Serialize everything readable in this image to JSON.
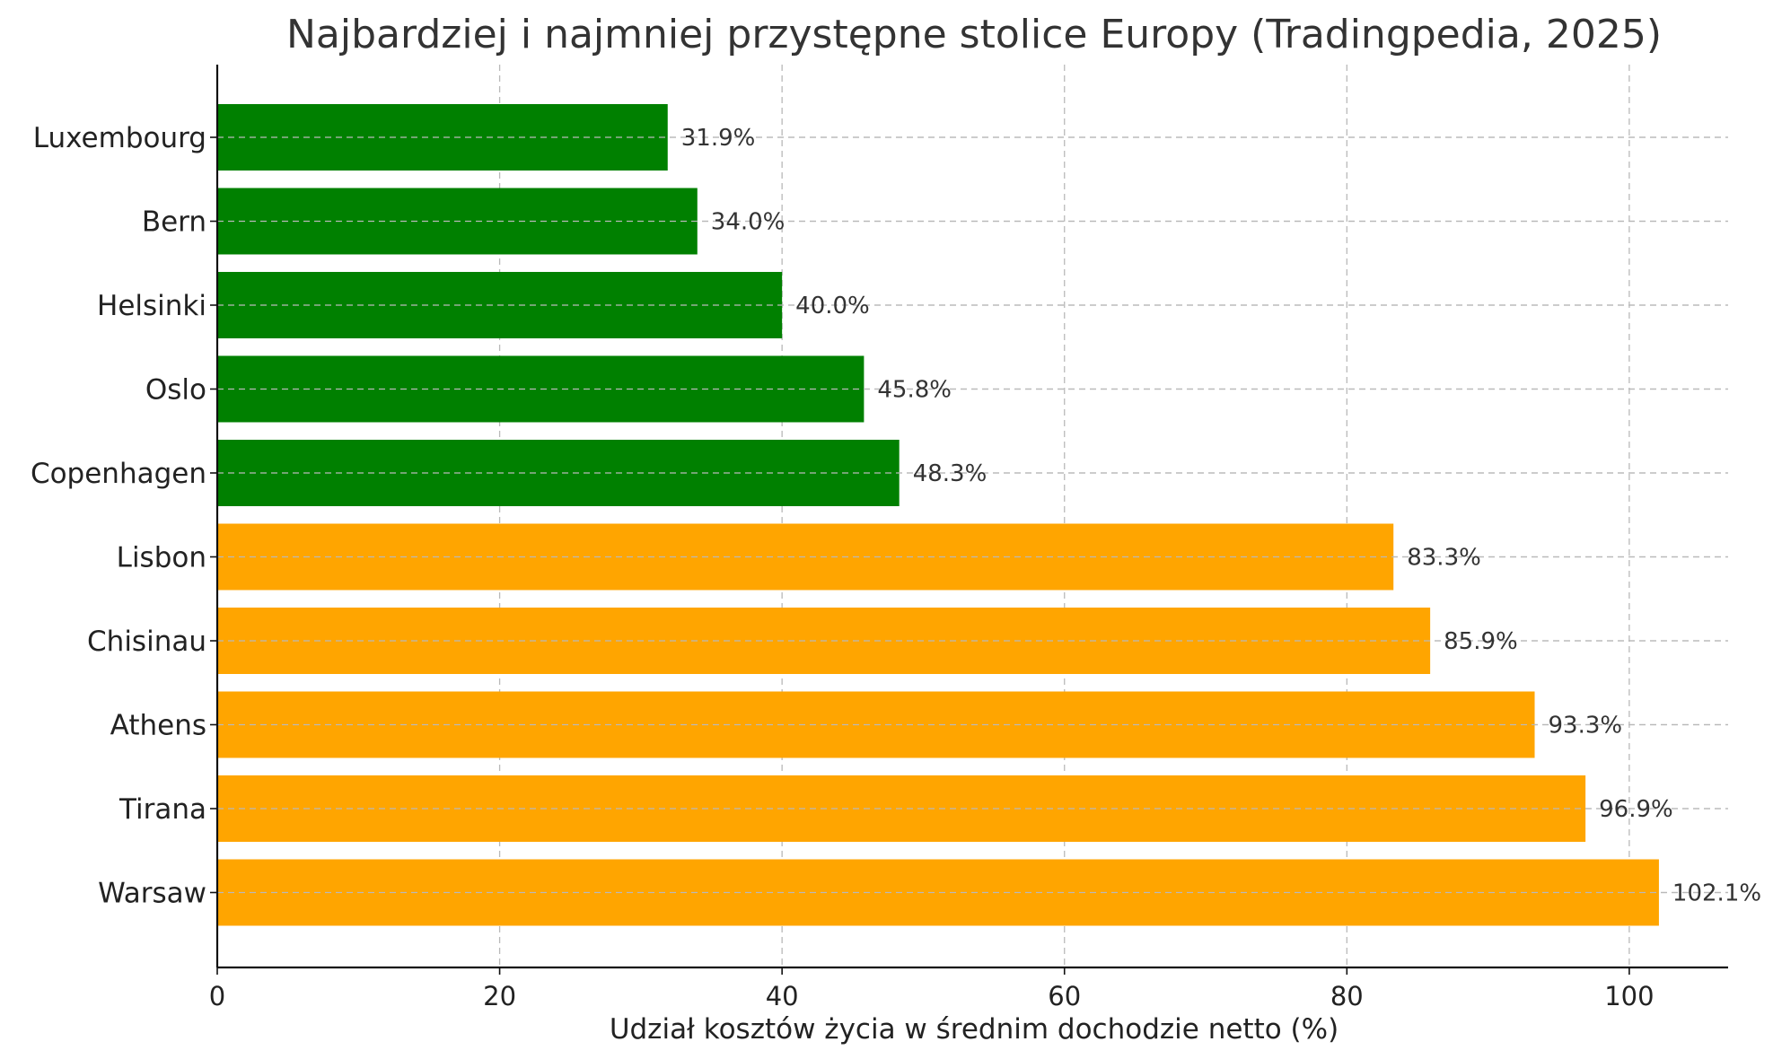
{
  "chart_data": {
    "type": "bar",
    "orientation": "horizontal",
    "title": "Najbardziej i najmniej przystępne stolice Europy (Tradingpedia, 2025)",
    "xlabel": "Udział kosztów życia w średnim dochodzie netto (%)",
    "ylabel": "",
    "xlim": [
      0,
      107
    ],
    "xticks": [
      0,
      20,
      40,
      60,
      80,
      100
    ],
    "grid": true,
    "categories": [
      "Luxembourg",
      "Bern",
      "Helsinki",
      "Oslo",
      "Copenhagen",
      "Lisbon",
      "Chisinau",
      "Athens",
      "Tirana",
      "Warsaw"
    ],
    "values": [
      31.9,
      34.0,
      40.0,
      45.8,
      48.3,
      83.3,
      85.9,
      93.3,
      96.9,
      102.1
    ],
    "value_labels": [
      "31.9%",
      "34.0%",
      "40.0%",
      "45.8%",
      "48.3%",
      "83.3%",
      "85.9%",
      "93.3%",
      "96.9%",
      "102.1%"
    ],
    "bar_colors": [
      "#008000",
      "#008000",
      "#008000",
      "#008000",
      "#008000",
      "#FFA500",
      "#FFA500",
      "#FFA500",
      "#FFA500",
      "#FFA500"
    ]
  }
}
